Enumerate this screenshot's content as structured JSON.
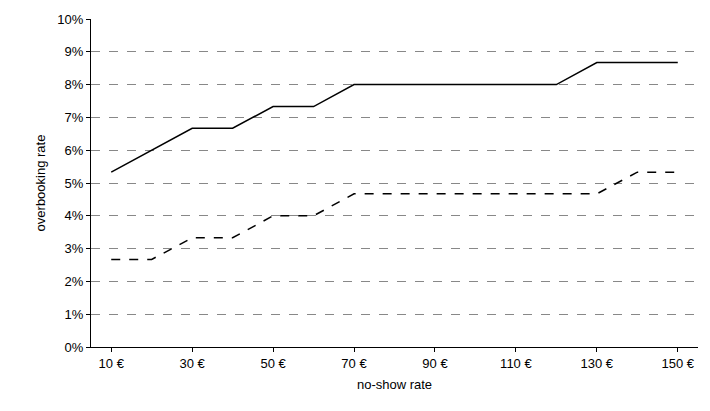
{
  "chart_data": {
    "type": "line",
    "x_label": "no-show rate",
    "y_label": "overbooking rate",
    "categories": [
      "10 €",
      null,
      "30 €",
      null,
      "50 €",
      null,
      "70 €",
      null,
      "90 €",
      null,
      "110 €",
      null,
      "130 €",
      null,
      "150 €"
    ],
    "series": [
      {
        "color": "#000000",
        "line_style": "solid",
        "values": [
          5.33,
          6.0,
          6.67,
          6.67,
          7.33,
          7.33,
          8.0,
          8.0,
          8.0,
          8.0,
          8.0,
          8.0,
          8.67,
          8.67,
          8.67
        ]
      },
      {
        "color": "#000000",
        "line_style": "dashed",
        "values": [
          2.67,
          2.67,
          3.33,
          3.33,
          4.0,
          4.0,
          4.67,
          4.67,
          4.67,
          4.67,
          4.67,
          4.67,
          4.67,
          5.33,
          5.33
        ]
      }
    ],
    "ylim": [
      0,
      10
    ],
    "yticks": [
      {
        "value": 0,
        "label": "0%"
      },
      {
        "value": 1,
        "label": "1%"
      },
      {
        "value": 2,
        "label": "2%"
      },
      {
        "value": 3,
        "label": "3%"
      },
      {
        "value": 4,
        "label": "4%"
      },
      {
        "value": 5,
        "label": "5%"
      },
      {
        "value": 6,
        "label": "6%"
      },
      {
        "value": 7,
        "label": "7%"
      },
      {
        "value": 8,
        "label": "8%"
      },
      {
        "value": 9,
        "label": "9%"
      },
      {
        "value": 10,
        "label": "10%"
      }
    ],
    "grid": true
  }
}
